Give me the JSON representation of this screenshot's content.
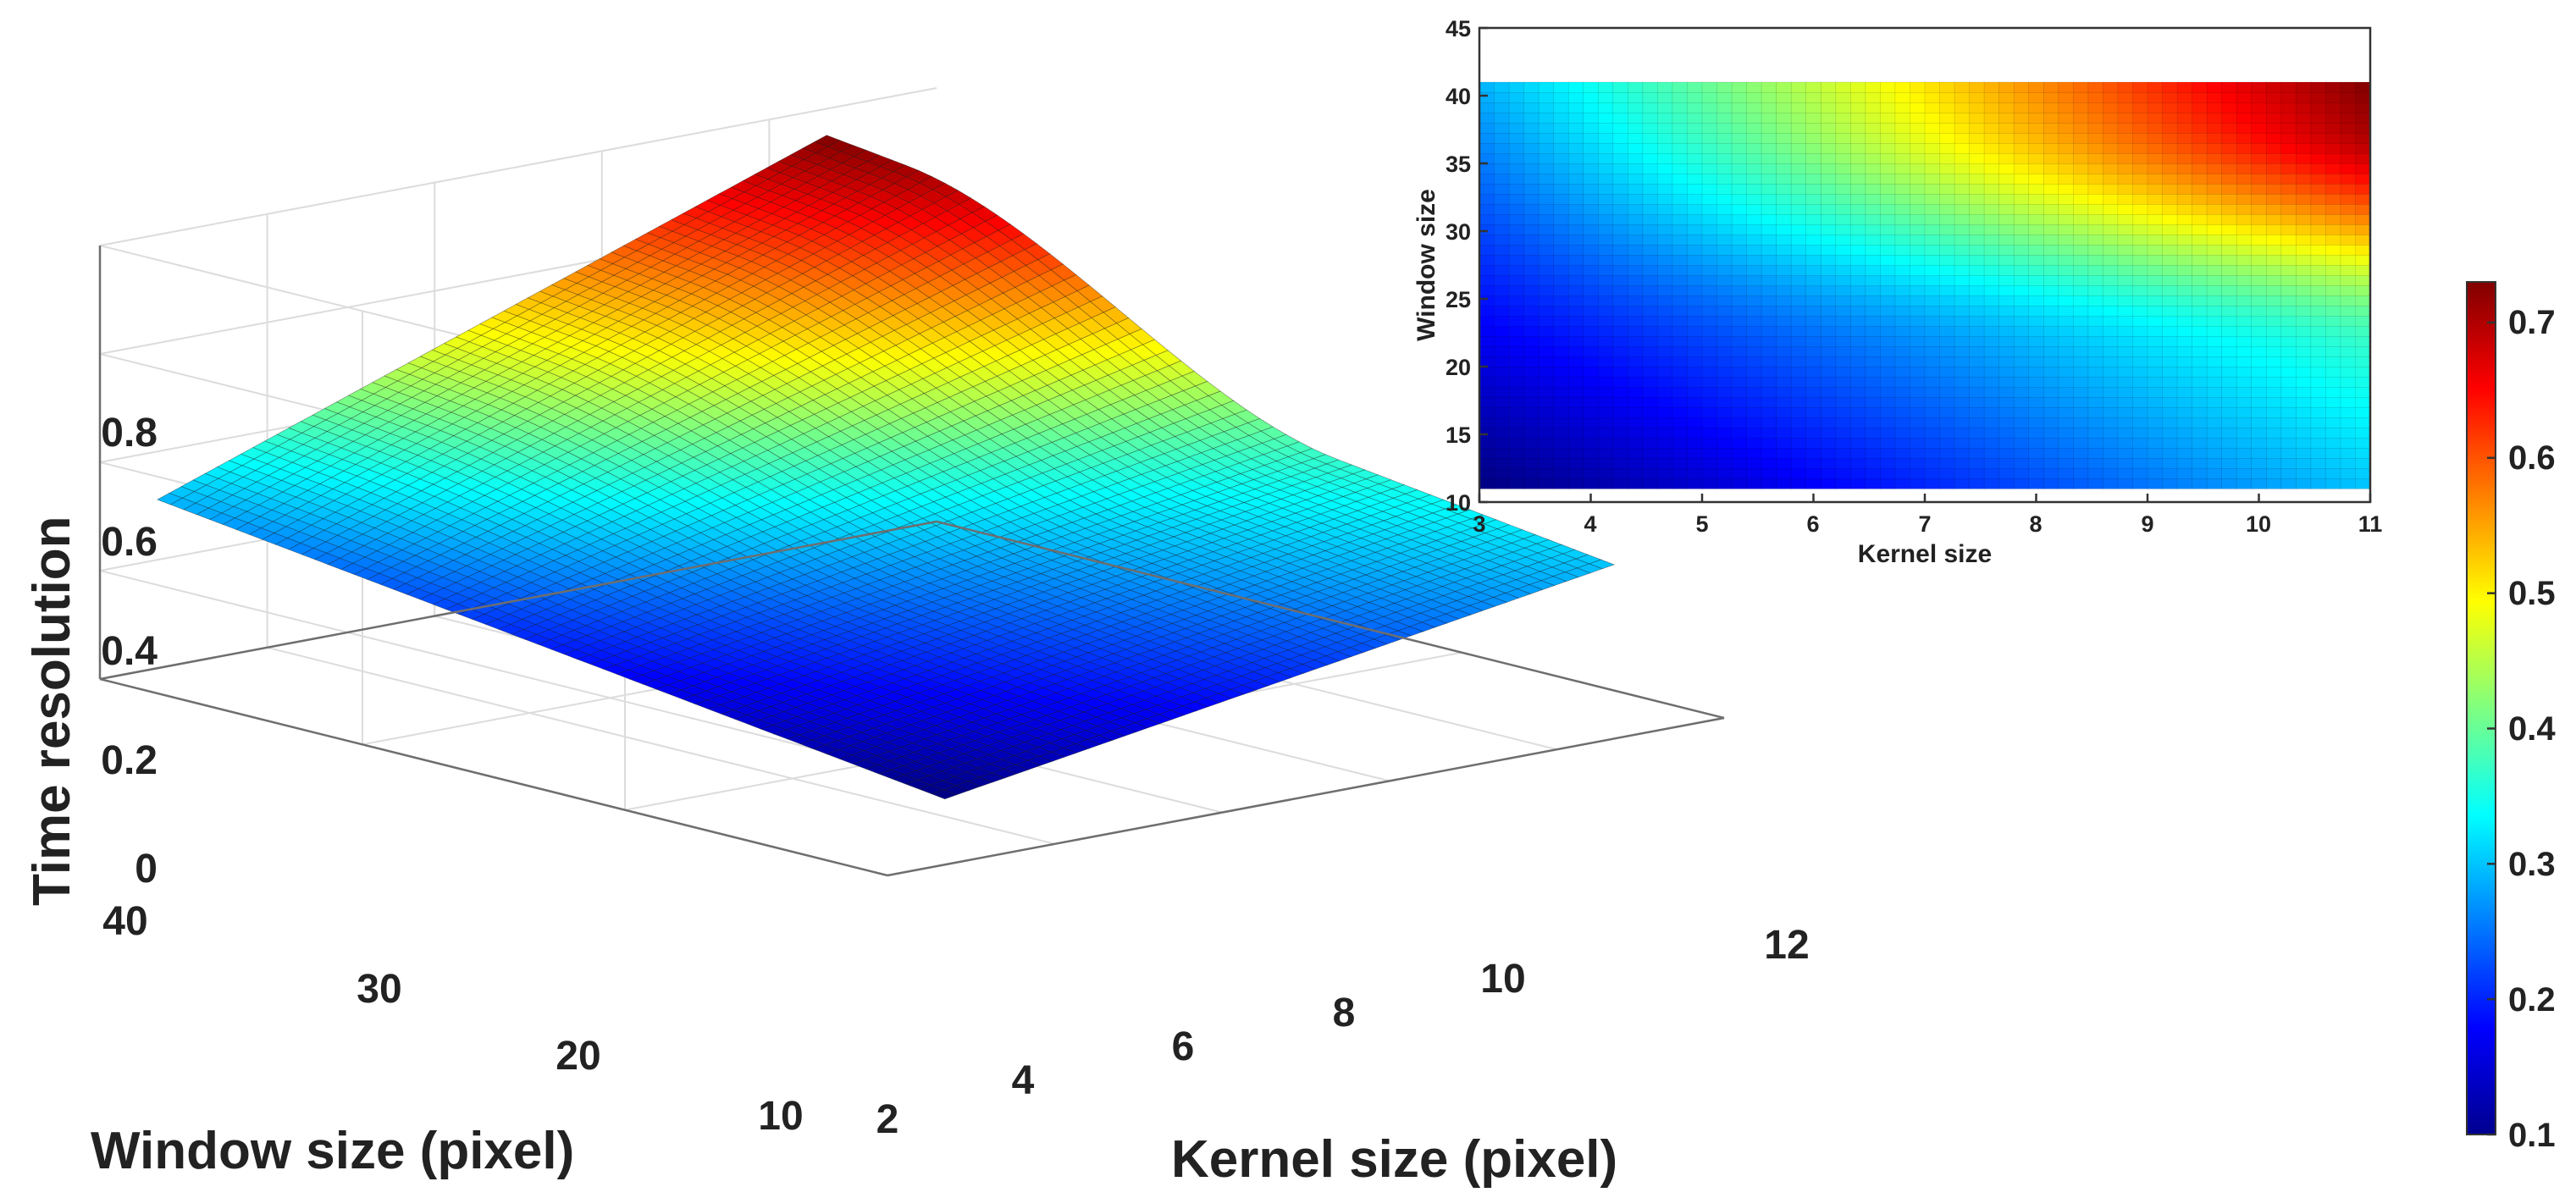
{
  "chart_data": [
    {
      "type": "surface",
      "title": "",
      "xlabel": "Kernel size (pixel)",
      "ylabel": "Window size (pixel)",
      "zlabel": "Time resolution",
      "xlim": [
        2,
        12
      ],
      "ylim": [
        10,
        40
      ],
      "zlim": [
        0,
        0.8
      ],
      "x_ticks": [
        "2",
        "4",
        "6",
        "8",
        "10",
        "12"
      ],
      "y_ticks": [
        "10",
        "20",
        "30",
        "40"
      ],
      "z_ticks": [
        "0",
        "0.2",
        "0.4",
        "0.6",
        "0.8"
      ],
      "x_data_range": [
        3,
        11
      ],
      "y_data_range": [
        11,
        41
      ],
      "grid": true,
      "colormap": "jet",
      "corner_values": [
        {
          "kernel": 3,
          "window": 11,
          "value": 0.1
        },
        {
          "kernel": 3,
          "window": 41,
          "value": 0.29
        },
        {
          "kernel": 11,
          "window": 11,
          "value": 0.3
        },
        {
          "kernel": 11,
          "window": 41,
          "value": 0.73
        }
      ]
    },
    {
      "type": "heatmap",
      "title": "",
      "xlabel": "Kernel size",
      "ylabel": "Window size",
      "xlim": [
        3,
        11
      ],
      "ylim": [
        10,
        45
      ],
      "x_ticks": [
        "3",
        "4",
        "5",
        "6",
        "7",
        "8",
        "9",
        "10",
        "11"
      ],
      "y_ticks": [
        "10",
        "15",
        "20",
        "25",
        "30",
        "35",
        "40",
        "45"
      ],
      "x_data_range": [
        3,
        11
      ],
      "y_data_range": [
        11,
        41
      ],
      "colormap": "jet"
    },
    {
      "type": "colorbar",
      "range": [
        0.1,
        0.73
      ],
      "ticks": [
        "0.1",
        "0.2",
        "0.3",
        "0.4",
        "0.5",
        "0.6",
        "0.7"
      ],
      "location": "right"
    }
  ]
}
